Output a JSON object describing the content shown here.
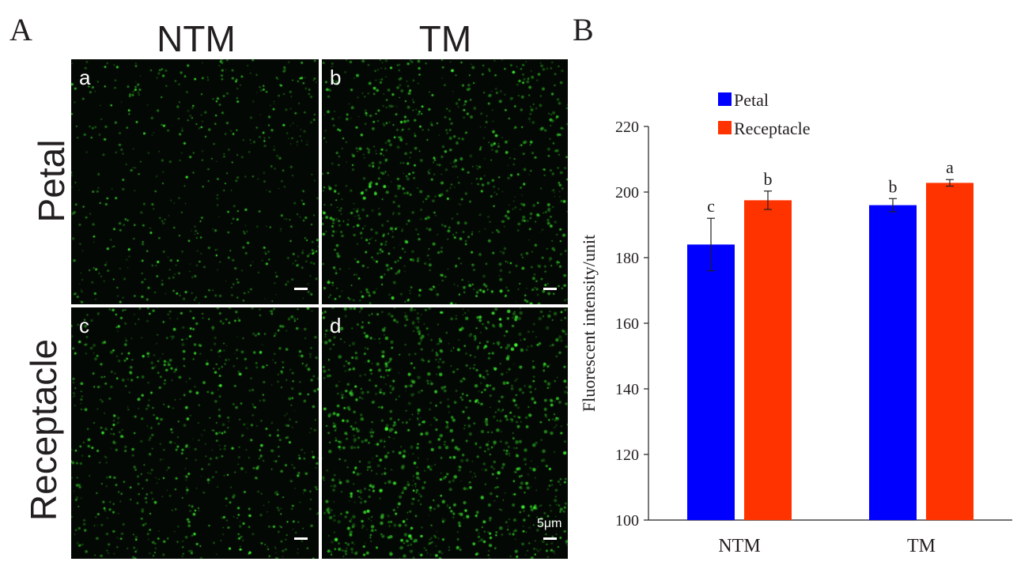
{
  "panel_a": {
    "letter": "A",
    "columns": [
      "NTM",
      "TM"
    ],
    "rows": [
      "Petal",
      "Receptacle"
    ],
    "images": [
      {
        "label": "a",
        "density": 0.35
      },
      {
        "label": "b",
        "density": 0.75
      },
      {
        "label": "c",
        "density": 0.6
      },
      {
        "label": "d",
        "density": 1.0
      }
    ],
    "scale_label": "5μm"
  },
  "panel_b": {
    "letter": "B"
  },
  "chart_data": {
    "type": "bar",
    "categories": [
      "NTM",
      "TM"
    ],
    "series": [
      {
        "name": "Petal",
        "color": "#0000ff",
        "values": [
          184,
          196
        ],
        "errors": [
          8,
          2
        ],
        "letters": [
          "c",
          "b"
        ]
      },
      {
        "name": "Receptacle",
        "color": "#ff3300",
        "values": [
          197.5,
          202.8
        ],
        "errors": [
          2.8,
          1
        ],
        "letters": [
          "b",
          "a"
        ]
      }
    ],
    "ylabel": "Fluorescent intensity/unit",
    "ylim": [
      100,
      220
    ],
    "yticks": [
      100,
      120,
      140,
      160,
      180,
      200,
      220
    ],
    "legend_position": "top-left",
    "grid": false
  }
}
